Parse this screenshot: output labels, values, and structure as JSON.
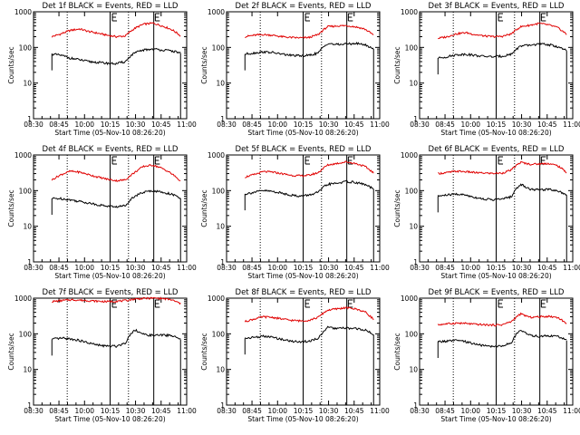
{
  "chart_data": {
    "type": "line",
    "xlabel": "Start Time (05-Nov-10 08:26:20)",
    "ylabel": "Counts/sec",
    "x_ticks": [
      "08:30",
      "08:45",
      "10:00",
      "10:15",
      "10:30",
      "10:45",
      "11:00"
    ],
    "y_ticks": [
      "1",
      "10",
      "100",
      "1000"
    ],
    "y_scale": "log",
    "ylim": [
      1,
      1000
    ],
    "colors": {
      "events": "#000000",
      "lld": "#e00000"
    },
    "panels": [
      {
        "title": "Det 1f BLACK = Events, RED = LLD",
        "events": [
          65,
          60,
          50,
          45,
          40,
          38,
          36,
          35,
          40,
          70,
          85,
          90,
          85,
          80,
          70
        ],
        "lld": [
          200,
          240,
          300,
          330,
          280,
          250,
          220,
          200,
          210,
          340,
          450,
          480,
          400,
          320,
          210
        ]
      },
      {
        "title": "Det 2f BLACK = Events, RED = LLD",
        "events": [
          65,
          70,
          75,
          72,
          65,
          60,
          58,
          60,
          70,
          130,
          120,
          125,
          130,
          120,
          90
        ],
        "lld": [
          200,
          220,
          230,
          220,
          200,
          190,
          185,
          190,
          230,
          380,
          400,
          410,
          380,
          330,
          220
        ]
      },
      {
        "title": "Det 3f BLACK = Events, RED = LLD",
        "events": [
          50,
          55,
          62,
          65,
          60,
          56,
          55,
          57,
          65,
          110,
          115,
          125,
          120,
          105,
          80
        ],
        "lld": [
          180,
          200,
          240,
          260,
          230,
          210,
          200,
          205,
          240,
          380,
          420,
          470,
          430,
          360,
          230
        ]
      },
      {
        "title": "Det 4f BLACK = Events, RED = LLD",
        "events": [
          60,
          60,
          55,
          50,
          45,
          40,
          37,
          35,
          38,
          70,
          90,
          100,
          90,
          80,
          60
        ],
        "lld": [
          200,
          280,
          350,
          330,
          280,
          240,
          210,
          190,
          200,
          320,
          480,
          520,
          420,
          300,
          180
        ]
      },
      {
        "title": "Det 5f BLACK = Events, RED = LLD",
        "events": [
          80,
          90,
          100,
          95,
          85,
          75,
          70,
          75,
          90,
          150,
          160,
          180,
          170,
          150,
          110
        ],
        "lld": [
          240,
          280,
          340,
          330,
          300,
          270,
          260,
          270,
          320,
          520,
          580,
          640,
          580,
          480,
          310
        ]
      },
      {
        "title": "Det 6f BLACK = Events, RED = LLD",
        "events": [
          70,
          75,
          80,
          75,
          65,
          58,
          56,
          58,
          68,
          150,
          110,
          105,
          110,
          100,
          75
        ],
        "lld": [
          300,
          320,
          350,
          340,
          320,
          310,
          305,
          310,
          380,
          620,
          550,
          560,
          580,
          500,
          320
        ]
      },
      {
        "title": "Det 7f BLACK = Events, RED = LLD",
        "events": [
          70,
          75,
          72,
          65,
          55,
          48,
          45,
          45,
          55,
          130,
          95,
          90,
          92,
          90,
          70
        ],
        "lld": [
          800,
          850,
          900,
          880,
          850,
          820,
          800,
          820,
          850,
          950,
          980,
          1000,
          980,
          900,
          700
        ]
      },
      {
        "title": "Det 8f BLACK = Events, RED = LLD",
        "events": [
          75,
          80,
          85,
          80,
          70,
          62,
          60,
          62,
          75,
          150,
          140,
          145,
          140,
          130,
          95
        ],
        "lld": [
          220,
          260,
          300,
          290,
          260,
          240,
          230,
          240,
          290,
          460,
          500,
          540,
          500,
          420,
          250
        ]
      },
      {
        "title": "Det 9f BLACK = Events, RED = LLD",
        "events": [
          60,
          62,
          65,
          60,
          52,
          46,
          44,
          46,
          56,
          130,
          90,
          85,
          88,
          85,
          65
        ],
        "lld": [
          180,
          190,
          200,
          195,
          185,
          180,
          175,
          180,
          220,
          360,
          290,
          300,
          310,
          290,
          190
        ]
      }
    ]
  }
}
